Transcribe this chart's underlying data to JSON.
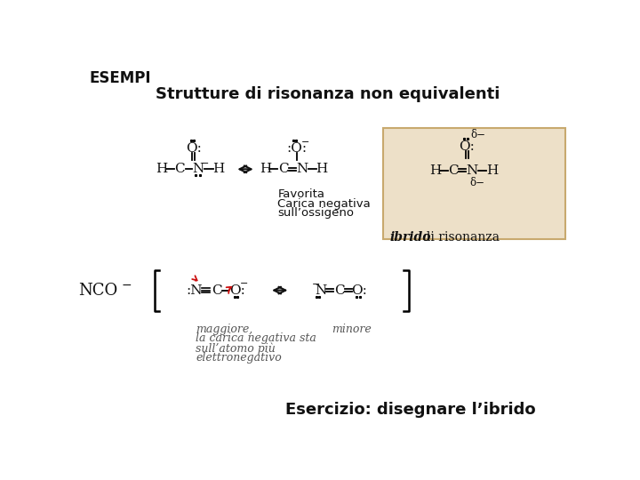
{
  "title_esempi": "ESEMPI",
  "title_main": "Strutture di risonanza non equivalenti",
  "bg_color": "#ffffff",
  "box_fill": "#ede0c8",
  "box_edge": "#c8a96e",
  "dark": "#111111",
  "gray": "#555555",
  "red_arrow": "#cc1111",
  "label_favorita": "Favorita",
  "label_carica": "Carica negativa",
  "label_ossigeno": "sull’ossigeno",
  "label_nco": "NCO",
  "label_maggiore": "maggiore,",
  "label_mag2": "la carica negativa sta",
  "label_mag3": "sull’atomo più",
  "label_mag4": "elettronegativo",
  "label_minore": "minore",
  "label_esercizio": "Esercizio: disegnare l’ibrido"
}
